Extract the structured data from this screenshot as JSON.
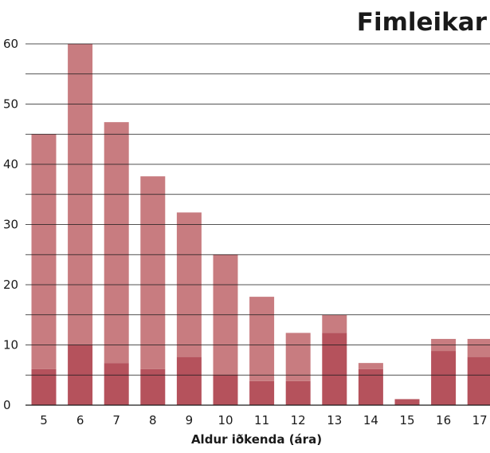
{
  "chart_data": {
    "type": "bar",
    "stacked": true,
    "title": "Fimleikar",
    "xlabel": "Aldur iðkenda (ára)",
    "ylabel": "",
    "ylim": [
      0,
      60
    ],
    "yticks": [
      0,
      10,
      20,
      30,
      40,
      50,
      60
    ],
    "grid": true,
    "categories": [
      "5",
      "6",
      "7",
      "8",
      "9",
      "10",
      "11",
      "12",
      "13",
      "14",
      "15",
      "16",
      "17"
    ],
    "series": [
      {
        "values": [
          6,
          10,
          7,
          6,
          8,
          5,
          4,
          4,
          12,
          6,
          1,
          9,
          8
        ]
      },
      {
        "values": [
          39,
          50,
          40,
          32,
          24,
          20,
          14,
          8,
          3,
          1,
          0,
          2,
          3
        ]
      }
    ],
    "colors": {
      "bottom": "#b5525c",
      "top": "#c87c80",
      "grid": "#1a1a1a"
    }
  }
}
